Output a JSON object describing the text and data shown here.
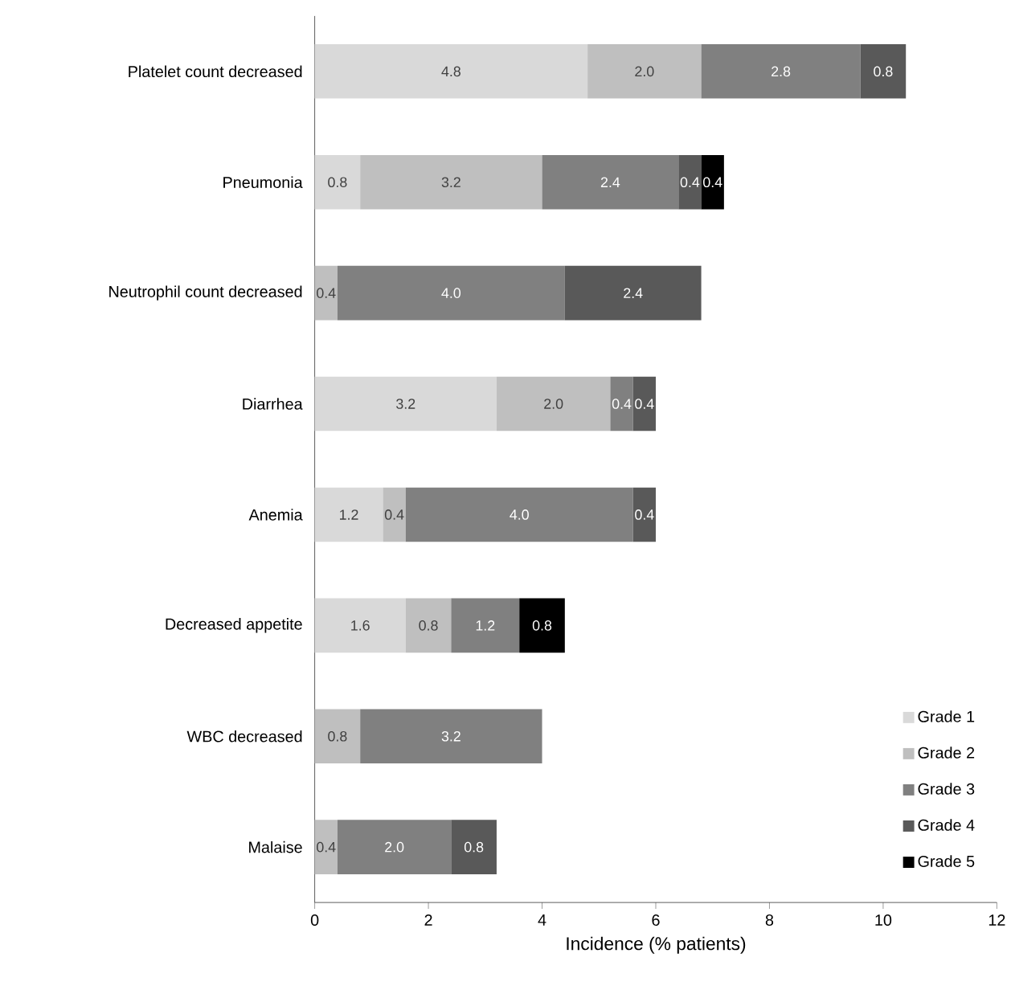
{
  "chart_data": {
    "type": "bar",
    "orientation": "horizontal",
    "stacked": true,
    "xlabel": "Incidence (% patients)",
    "categories": [
      "Platelet count decreased",
      "Pneumonia",
      "Neutrophil count decreased",
      "Diarrhea",
      "Anemia",
      "Decreased appetite",
      "WBC decreased",
      "Malaise"
    ],
    "xlim": [
      0,
      12
    ],
    "xticks": [
      0,
      2,
      4,
      6,
      8,
      10,
      12
    ],
    "grid": false,
    "legend": "bottom right",
    "data_labels": true,
    "series": [
      {
        "name": "Grade 1",
        "color": "#d9d9d9",
        "values": [
          4.8,
          0.8,
          null,
          3.2,
          1.2,
          1.6,
          null,
          null
        ],
        "value_labels": [
          "4.8",
          "0.8",
          null,
          "3.2",
          "1.2",
          "1.6",
          null,
          null
        ]
      },
      {
        "name": "Grade 2",
        "color": "#bfbfbf",
        "values": [
          2.0,
          3.2,
          0.4,
          2.0,
          0.4,
          0.8,
          0.8,
          0.4
        ],
        "value_labels": [
          "2.0",
          "3.2",
          "0.4",
          "2.0",
          "0.4",
          "0.8",
          "0.8",
          "0.4"
        ]
      },
      {
        "name": "Grade 3",
        "color": "#808080",
        "values": [
          2.8,
          2.4,
          4.0,
          0.4,
          4.0,
          1.2,
          3.2,
          2.0
        ],
        "value_labels": [
          "2.8",
          "2.4",
          "4.0",
          "0.4",
          "4.0",
          "1.2",
          "3.2",
          "2.0"
        ]
      },
      {
        "name": "Grade 4",
        "color": "#595959",
        "values": [
          0.8,
          0.4,
          2.4,
          0.4,
          0.4,
          null,
          null,
          0.8
        ],
        "value_labels": [
          "0.8",
          "0.4",
          "2.4",
          "0.4",
          "0.4",
          null,
          null,
          "0.8"
        ]
      },
      {
        "name": "Grade 5",
        "color": "#000000",
        "values": [
          null,
          0.4,
          null,
          null,
          null,
          0.8,
          null,
          null
        ],
        "value_labels": [
          null,
          "0.4",
          null,
          null,
          null,
          "0.8",
          null,
          null
        ]
      }
    ]
  }
}
